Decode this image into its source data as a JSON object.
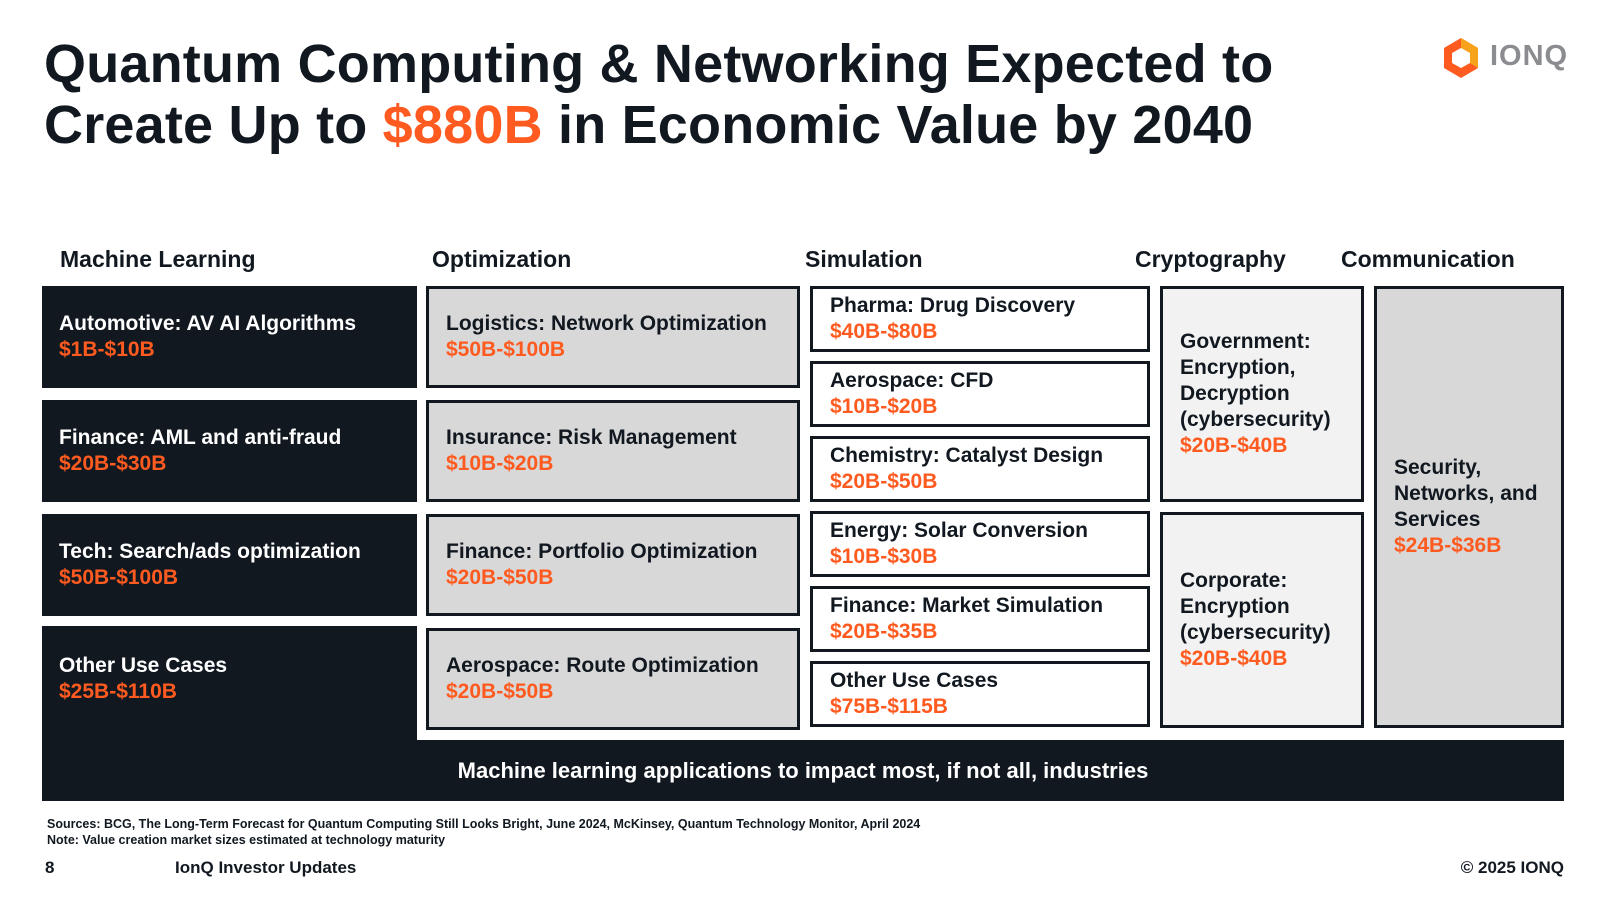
{
  "title": {
    "part1": "Quantum Computing & Networking Expected to Create Up to ",
    "highlight": "$880B",
    "part2": " in Economic Value by 2040"
  },
  "logo": {
    "text": "IONQ",
    "icon": "ionq-hexagon-icon"
  },
  "colors": {
    "accent": "#ff5a1f",
    "dark": "#111820",
    "gray": "#d8d8d8",
    "light": "#f2f2f2"
  },
  "columns": {
    "machine_learning": {
      "heading": "Machine Learning",
      "items": [
        {
          "label": "Automotive: AV AI Algorithms",
          "value": "$1B-$10B"
        },
        {
          "label": "Finance: AML and anti-fraud",
          "value": "$20B-$30B"
        },
        {
          "label": "Tech: Search/ads optimization",
          "value": "$50B-$100B"
        },
        {
          "label": "Other Use Cases",
          "value": "$25B-$110B"
        }
      ]
    },
    "optimization": {
      "heading": "Optimization",
      "items": [
        {
          "label": "Logistics: Network Optimization",
          "value": "$50B-$100B"
        },
        {
          "label": "Insurance: Risk Management",
          "value": "$10B-$20B"
        },
        {
          "label": "Finance: Portfolio Optimization",
          "value": "$20B-$50B"
        },
        {
          "label": "Aerospace: Route Optimization",
          "value": "$20B-$50B"
        }
      ]
    },
    "simulation": {
      "heading": "Simulation",
      "items": [
        {
          "label": "Pharma: Drug Discovery",
          "value": "$40B-$80B"
        },
        {
          "label": "Aerospace: CFD",
          "value": "$10B-$20B"
        },
        {
          "label": "Chemistry: Catalyst Design",
          "value": "$20B-$50B"
        },
        {
          "label": "Energy: Solar Conversion",
          "value": "$10B-$30B"
        },
        {
          "label": "Finance: Market Simulation",
          "value": "$20B-$35B"
        },
        {
          "label": "Other Use Cases",
          "value": "$75B-$115B"
        }
      ]
    },
    "cryptography": {
      "heading": "Cryptography",
      "items": [
        {
          "lines": [
            "Government:",
            "Encryption,",
            "Decryption",
            "(cybersecurity)"
          ],
          "value": "$20B-$40B"
        },
        {
          "lines": [
            "Corporate:",
            "Encryption",
            "(cybersecurity)"
          ],
          "value": "$20B-$40B"
        }
      ]
    },
    "communication": {
      "heading": "Communication",
      "items": [
        {
          "lines": [
            "Security,",
            "Networks, and",
            "Services"
          ],
          "value": "$24B-$36B"
        }
      ]
    }
  },
  "banner": "Machine learning applications to impact most, if not all, industries",
  "sources": {
    "line1": "Sources: BCG, The Long-Term Forecast for Quantum Computing Still Looks Bright, June 2024, McKinsey, Quantum Technology Monitor, April 2024",
    "line2": "Note: Value creation market sizes estimated at technology maturity"
  },
  "footer": {
    "page_number": "8",
    "deck_name": "IonQ Investor Updates",
    "copyright": "© 2025 IONQ"
  }
}
